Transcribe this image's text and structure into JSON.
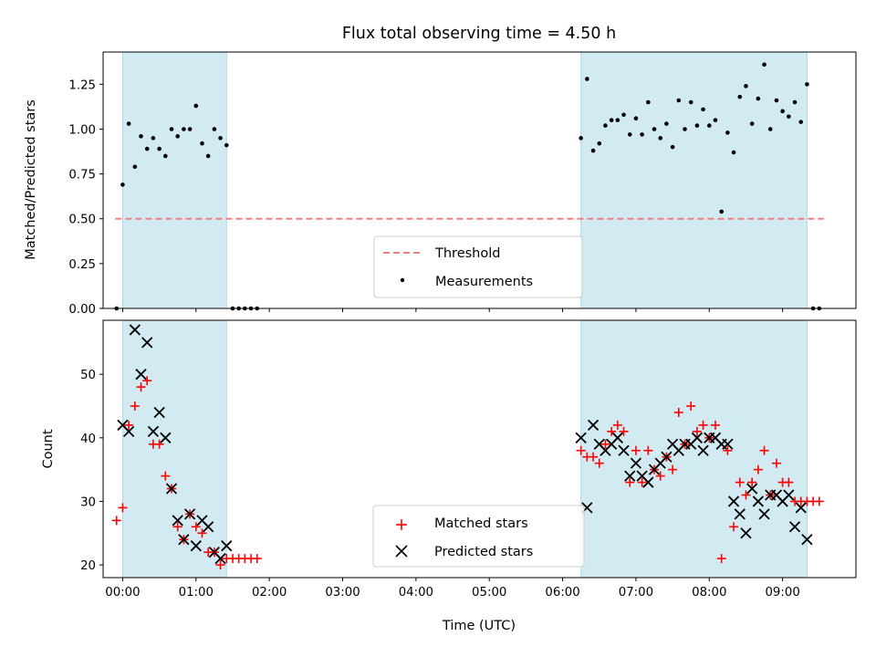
{
  "chart_data": [
    {
      "type": "scatter",
      "title": "Flux total observing time = 4.50 h",
      "xlabel": "",
      "ylabel": "Matched/Predicted stars",
      "xlim": [
        "23:44",
        "10:00"
      ],
      "ylim": [
        0,
        1.43
      ],
      "yticks": [
        "0.00",
        "0.25",
        "0.50",
        "0.75",
        "1.00",
        "1.25"
      ],
      "shaded_intervals": [
        [
          "00:00",
          "01:25"
        ],
        [
          "06:15",
          "09:20"
        ]
      ],
      "threshold": {
        "name": "Threshold",
        "value": 0.5,
        "x_range": [
          "00:00",
          "09:30"
        ],
        "color": "#f08080",
        "style": "dashed"
      },
      "series": [
        {
          "name": "Measurements",
          "marker": "dot",
          "color": "#000000",
          "points": [
            [
              "23:55",
              0.0
            ],
            [
              "00:00",
              0.69
            ],
            [
              "00:05",
              1.03
            ],
            [
              "00:10",
              0.79
            ],
            [
              "00:15",
              0.96
            ],
            [
              "00:20",
              0.89
            ],
            [
              "00:25",
              0.95
            ],
            [
              "00:30",
              0.89
            ],
            [
              "00:35",
              0.85
            ],
            [
              "00:40",
              1.0
            ],
            [
              "00:45",
              0.96
            ],
            [
              "00:50",
              1.0
            ],
            [
              "00:55",
              1.0
            ],
            [
              "01:00",
              1.13
            ],
            [
              "01:05",
              0.92
            ],
            [
              "01:10",
              0.85
            ],
            [
              "01:15",
              1.0
            ],
            [
              "01:20",
              0.95
            ],
            [
              "01:25",
              0.91
            ],
            [
              "01:30",
              0.0
            ],
            [
              "01:35",
              0.0
            ],
            [
              "01:40",
              0.0
            ],
            [
              "01:45",
              0.0
            ],
            [
              "01:50",
              0.0
            ],
            [
              "06:15",
              0.95
            ],
            [
              "06:20",
              1.28
            ],
            [
              "06:25",
              0.88
            ],
            [
              "06:30",
              0.92
            ],
            [
              "06:35",
              1.02
            ],
            [
              "06:40",
              1.05
            ],
            [
              "06:45",
              1.05
            ],
            [
              "06:50",
              1.08
            ],
            [
              "06:55",
              0.97
            ],
            [
              "07:00",
              1.06
            ],
            [
              "07:05",
              0.97
            ],
            [
              "07:10",
              1.15
            ],
            [
              "07:15",
              1.0
            ],
            [
              "07:20",
              0.95
            ],
            [
              "07:25",
              1.03
            ],
            [
              "07:30",
              0.9
            ],
            [
              "07:35",
              1.16
            ],
            [
              "07:40",
              1.0
            ],
            [
              "07:45",
              1.15
            ],
            [
              "07:50",
              1.02
            ],
            [
              "07:55",
              1.11
            ],
            [
              "08:00",
              1.02
            ],
            [
              "08:05",
              1.05
            ],
            [
              "08:10",
              0.54
            ],
            [
              "08:15",
              0.98
            ],
            [
              "08:20",
              0.87
            ],
            [
              "08:25",
              1.18
            ],
            [
              "08:30",
              1.24
            ],
            [
              "08:35",
              1.03
            ],
            [
              "08:40",
              1.17
            ],
            [
              "08:45",
              1.36
            ],
            [
              "08:50",
              1.0
            ],
            [
              "08:55",
              1.16
            ],
            [
              "09:00",
              1.1
            ],
            [
              "09:05",
              1.07
            ],
            [
              "09:10",
              1.15
            ],
            [
              "09:15",
              1.04
            ],
            [
              "09:20",
              1.25
            ],
            [
              "09:25",
              0.0
            ],
            [
              "09:30",
              0.0
            ]
          ]
        }
      ],
      "legend": {
        "placement": "lower-center",
        "entries": [
          "Threshold",
          "Measurements"
        ]
      }
    },
    {
      "type": "scatter",
      "title": "",
      "xlabel": "Time (UTC)",
      "ylabel": "Count",
      "xlim": [
        "23:44",
        "10:00"
      ],
      "ylim": [
        18,
        58.5
      ],
      "yticks": [
        "20",
        "30",
        "40",
        "50"
      ],
      "xticks": [
        "00:00",
        "01:00",
        "02:00",
        "03:00",
        "04:00",
        "05:00",
        "06:00",
        "07:00",
        "08:00",
        "09:00"
      ],
      "shaded_intervals": [
        [
          "00:00",
          "01:25"
        ],
        [
          "06:15",
          "09:20"
        ]
      ],
      "series": [
        {
          "name": "Matched stars",
          "marker": "plus",
          "color": "#ff0000",
          "points": [
            [
              "23:55",
              27
            ],
            [
              "00:00",
              29
            ],
            [
              "00:05",
              42
            ],
            [
              "00:10",
              45
            ],
            [
              "00:15",
              48
            ],
            [
              "00:20",
              49
            ],
            [
              "00:25",
              39
            ],
            [
              "00:30",
              39
            ],
            [
              "00:35",
              34
            ],
            [
              "00:40",
              32
            ],
            [
              "00:45",
              26
            ],
            [
              "00:50",
              24
            ],
            [
              "00:55",
              28
            ],
            [
              "01:00",
              26
            ],
            [
              "01:05",
              25
            ],
            [
              "01:10",
              22
            ],
            [
              "01:15",
              22
            ],
            [
              "01:20",
              20
            ],
            [
              "01:25",
              21
            ],
            [
              "01:30",
              21
            ],
            [
              "01:35",
              21
            ],
            [
              "01:40",
              21
            ],
            [
              "01:45",
              21
            ],
            [
              "01:50",
              21
            ],
            [
              "06:15",
              38
            ],
            [
              "06:20",
              37
            ],
            [
              "06:25",
              37
            ],
            [
              "06:30",
              36
            ],
            [
              "06:35",
              39
            ],
            [
              "06:40",
              41
            ],
            [
              "06:45",
              42
            ],
            [
              "06:50",
              41
            ],
            [
              "06:55",
              33
            ],
            [
              "07:00",
              38
            ],
            [
              "07:05",
              33
            ],
            [
              "07:10",
              38
            ],
            [
              "07:15",
              35
            ],
            [
              "07:20",
              34
            ],
            [
              "07:25",
              37
            ],
            [
              "07:30",
              35
            ],
            [
              "07:35",
              44
            ],
            [
              "07:40",
              39
            ],
            [
              "07:45",
              45
            ],
            [
              "07:50",
              41
            ],
            [
              "07:55",
              42
            ],
            [
              "08:00",
              40
            ],
            [
              "08:05",
              42
            ],
            [
              "08:10",
              21
            ],
            [
              "08:15",
              38
            ],
            [
              "08:20",
              26
            ],
            [
              "08:25",
              33
            ],
            [
              "08:30",
              31
            ],
            [
              "08:35",
              33
            ],
            [
              "08:40",
              35
            ],
            [
              "08:45",
              38
            ],
            [
              "08:50",
              31
            ],
            [
              "08:55",
              36
            ],
            [
              "09:00",
              33
            ],
            [
              "09:05",
              33
            ],
            [
              "09:10",
              30
            ],
            [
              "09:15",
              30
            ],
            [
              "09:20",
              30
            ],
            [
              "09:25",
              30
            ],
            [
              "09:30",
              30
            ]
          ]
        },
        {
          "name": "Predicted stars",
          "marker": "x",
          "color": "#000000",
          "points": [
            [
              "00:00",
              42
            ],
            [
              "00:05",
              41
            ],
            [
              "00:10",
              57
            ],
            [
              "00:15",
              50
            ],
            [
              "00:20",
              55
            ],
            [
              "00:25",
              41
            ],
            [
              "00:30",
              44
            ],
            [
              "00:35",
              40
            ],
            [
              "00:40",
              32
            ],
            [
              "00:45",
              27
            ],
            [
              "00:50",
              24
            ],
            [
              "00:55",
              28
            ],
            [
              "01:00",
              23
            ],
            [
              "01:05",
              27
            ],
            [
              "01:10",
              26
            ],
            [
              "01:15",
              22
            ],
            [
              "01:20",
              21
            ],
            [
              "01:25",
              23
            ],
            [
              "06:15",
              40
            ],
            [
              "06:20",
              29
            ],
            [
              "06:25",
              42
            ],
            [
              "06:30",
              39
            ],
            [
              "06:35",
              38
            ],
            [
              "06:40",
              39
            ],
            [
              "06:45",
              40
            ],
            [
              "06:50",
              38
            ],
            [
              "06:55",
              34
            ],
            [
              "07:00",
              36
            ],
            [
              "07:05",
              34
            ],
            [
              "07:10",
              33
            ],
            [
              "07:15",
              35
            ],
            [
              "07:20",
              36
            ],
            [
              "07:25",
              37
            ],
            [
              "07:30",
              39
            ],
            [
              "07:35",
              38
            ],
            [
              "07:40",
              39
            ],
            [
              "07:45",
              39
            ],
            [
              "07:50",
              40
            ],
            [
              "07:55",
              38
            ],
            [
              "08:00",
              40
            ],
            [
              "08:05",
              40
            ],
            [
              "08:10",
              39
            ],
            [
              "08:15",
              39
            ],
            [
              "08:20",
              30
            ],
            [
              "08:25",
              28
            ],
            [
              "08:30",
              25
            ],
            [
              "08:35",
              32
            ],
            [
              "08:40",
              30
            ],
            [
              "08:45",
              28
            ],
            [
              "08:50",
              31
            ],
            [
              "08:55",
              31
            ],
            [
              "09:00",
              30
            ],
            [
              "09:05",
              31
            ],
            [
              "09:10",
              26
            ],
            [
              "09:15",
              29
            ],
            [
              "09:20",
              24
            ]
          ]
        }
      ],
      "legend": {
        "placement": "lower-center",
        "entries": [
          "Matched stars",
          "Predicted stars"
        ]
      }
    }
  ],
  "colors": {
    "shade": "#add8e6",
    "threshold": "#f08080",
    "matched": "#ff0000",
    "predicted": "#000000",
    "measurement": "#000000"
  }
}
